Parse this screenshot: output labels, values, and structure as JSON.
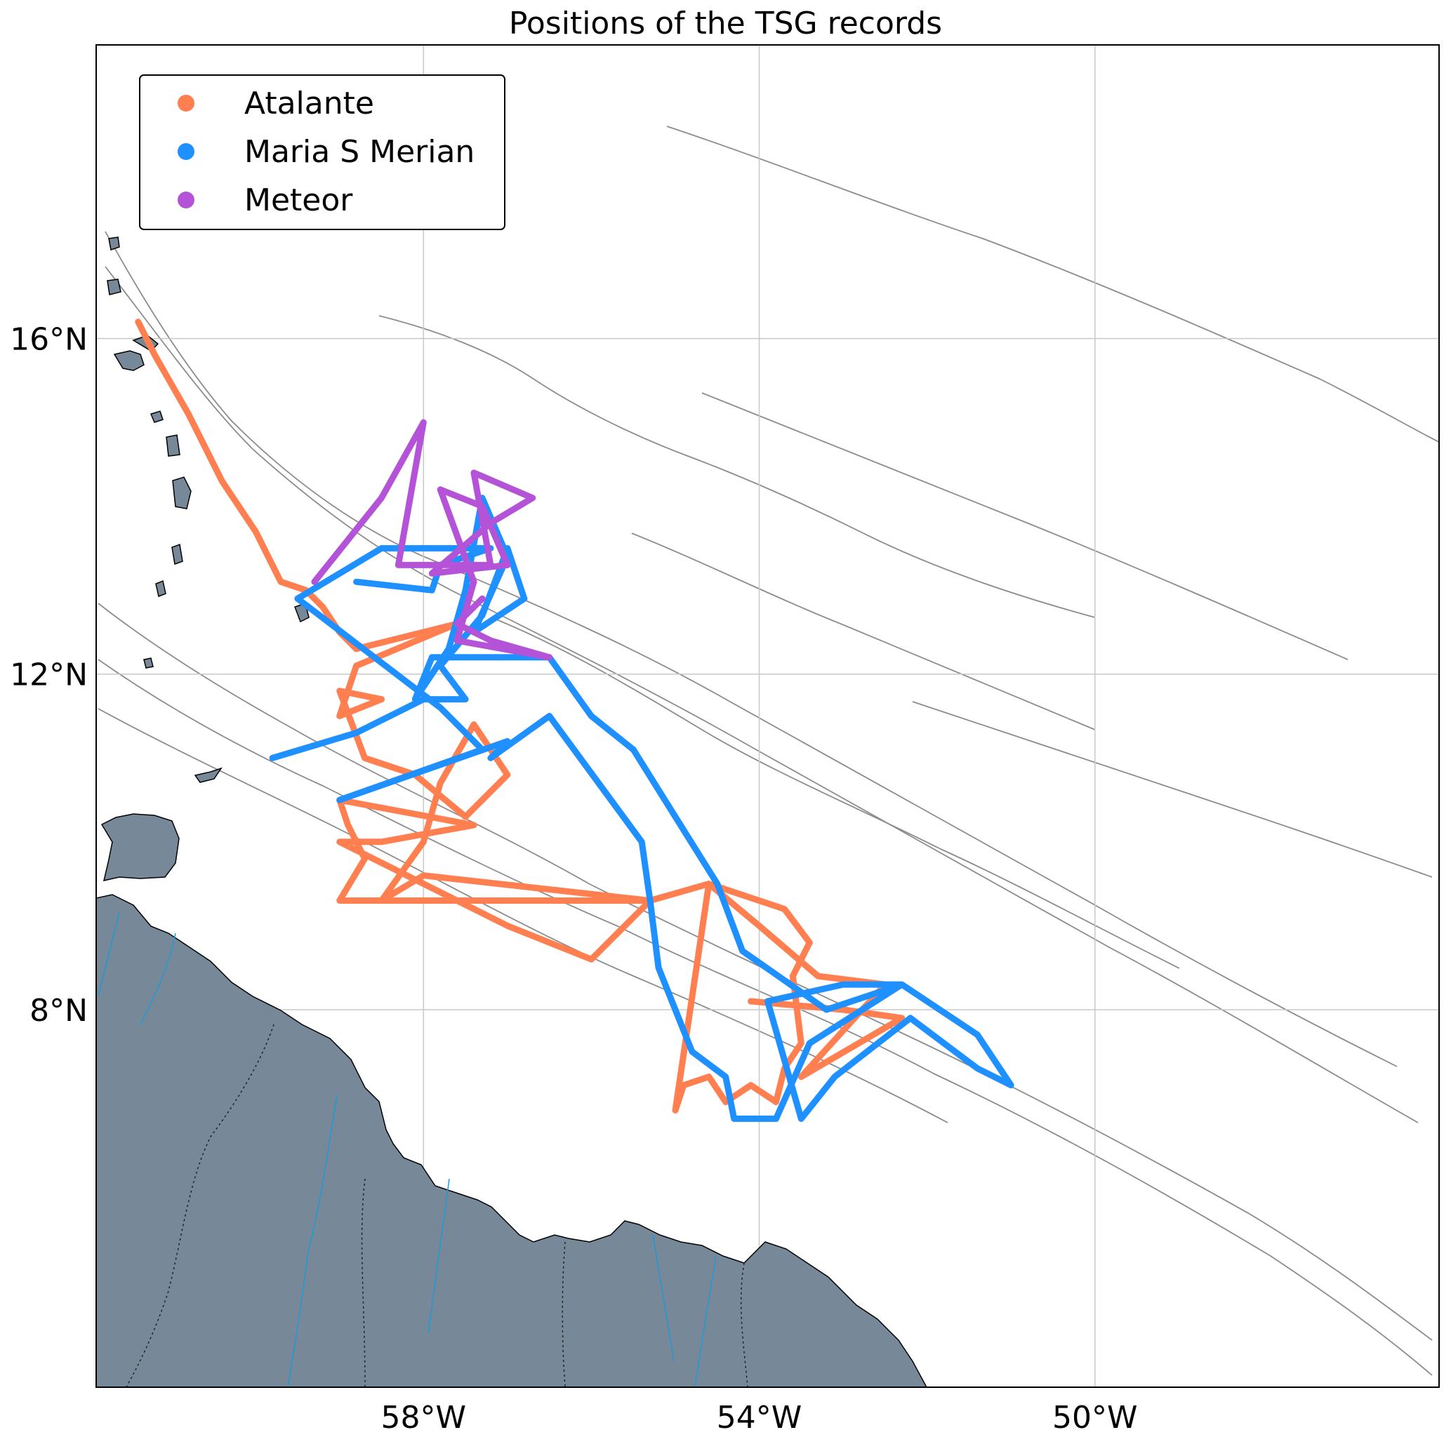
{
  "title": "Positions of the TSG records",
  "colors": {
    "land": "#778899",
    "contour": "#8c8c8c",
    "grid": "#c8c8c8",
    "river": "#1e9bd7",
    "Atalante": "#ff7f50",
    "Maria S Merian": "#1e90ff",
    "Meteor": "#b452d8"
  },
  "map": {
    "extent": {
      "lon_min": -61.9,
      "lon_max": -45.9,
      "lat_min": 3.5,
      "lat_max": 19.5
    },
    "lon_ticks": [
      {
        "value": -58,
        "label": "58°W"
      },
      {
        "value": -54,
        "label": "54°W"
      },
      {
        "value": -50,
        "label": "50°W"
      }
    ],
    "lat_ticks": [
      {
        "value": 16,
        "label": "16°N"
      },
      {
        "value": 12,
        "label": "12°N"
      },
      {
        "value": 8,
        "label": "8°N"
      }
    ],
    "grid": true,
    "features": [
      "land",
      "coastline",
      "rivers",
      "borders",
      "bathymetry-contours"
    ]
  },
  "legend": {
    "position": "top-left",
    "entries": [
      {
        "label": "Atalante",
        "icon": "circle-marker"
      },
      {
        "label": "Maria S Merian",
        "icon": "circle-marker"
      },
      {
        "label": "Meteor",
        "icon": "circle-marker"
      }
    ]
  },
  "tracks": [
    {
      "ship": "Atalante",
      "coords": [
        [
          -61.4,
          16.2
        ],
        [
          -61.2,
          15.8
        ],
        [
          -60.8,
          15.1
        ],
        [
          -60.4,
          14.3
        ],
        [
          -60.0,
          13.7
        ],
        [
          -59.7,
          13.1
        ],
        [
          -59.4,
          13.0
        ],
        [
          -59.2,
          12.8
        ],
        [
          -59.0,
          12.5
        ],
        [
          -58.8,
          12.3
        ],
        [
          -57.6,
          12.6
        ],
        [
          -58.8,
          12.1
        ],
        [
          -59.0,
          11.5
        ],
        [
          -58.5,
          11.7
        ],
        [
          -59.0,
          11.8
        ],
        [
          -58.7,
          11.0
        ],
        [
          -58.1,
          10.8
        ],
        [
          -57.5,
          10.3
        ],
        [
          -57.0,
          10.8
        ],
        [
          -57.4,
          11.4
        ],
        [
          -57.8,
          10.7
        ],
        [
          -58.0,
          10.0
        ],
        [
          -58.5,
          9.3
        ],
        [
          -59.0,
          9.3
        ],
        [
          -58.7,
          9.8
        ],
        [
          -58.9,
          10.2
        ],
        [
          -59.0,
          10.5
        ],
        [
          -57.4,
          10.2
        ],
        [
          -58.5,
          10.0
        ],
        [
          -59.0,
          10.0
        ],
        [
          -57.0,
          9.0
        ],
        [
          -56.0,
          8.6
        ],
        [
          -55.3,
          9.3
        ],
        [
          -57.0,
          9.3
        ],
        [
          -58.5,
          9.3
        ],
        [
          -58.0,
          9.6
        ],
        [
          -55.3,
          9.3
        ],
        [
          -54.6,
          9.5
        ],
        [
          -53.7,
          9.2
        ],
        [
          -53.4,
          8.8
        ],
        [
          -53.6,
          8.4
        ],
        [
          -53.5,
          7.6
        ],
        [
          -53.7,
          7.3
        ],
        [
          -53.8,
          6.9
        ],
        [
          -54.1,
          7.1
        ],
        [
          -54.4,
          6.9
        ],
        [
          -54.6,
          7.2
        ],
        [
          -54.9,
          7.1
        ],
        [
          -55.0,
          6.8
        ],
        [
          -54.6,
          9.5
        ],
        [
          -54.0,
          9.0
        ],
        [
          -53.3,
          8.4
        ],
        [
          -52.5,
          8.3
        ],
        [
          -53.5,
          7.2
        ],
        [
          -52.3,
          7.9
        ],
        [
          -53.0,
          8.0
        ],
        [
          -54.1,
          8.1
        ]
      ]
    },
    {
      "ship": "Maria S Merian",
      "coords": [
        [
          -59.8,
          11.0
        ],
        [
          -58.8,
          11.3
        ],
        [
          -58.0,
          11.7
        ],
        [
          -57.5,
          11.7
        ],
        [
          -57.8,
          12.1
        ],
        [
          -57.3,
          12.7
        ],
        [
          -57.0,
          13.5
        ],
        [
          -56.8,
          12.9
        ],
        [
          -57.4,
          12.5
        ],
        [
          -57.0,
          13.4
        ],
        [
          -57.3,
          14.1
        ],
        [
          -57.5,
          13.0
        ],
        [
          -57.7,
          12.3
        ],
        [
          -58.1,
          11.7
        ],
        [
          -57.9,
          12.2
        ],
        [
          -56.5,
          12.2
        ],
        [
          -56.0,
          11.5
        ],
        [
          -55.5,
          11.1
        ],
        [
          -55.0,
          10.3
        ],
        [
          -54.5,
          9.5
        ],
        [
          -54.2,
          8.7
        ],
        [
          -53.2,
          8.0
        ],
        [
          -52.3,
          8.3
        ],
        [
          -51.4,
          7.7
        ],
        [
          -51.0,
          7.1
        ],
        [
          -51.4,
          7.3
        ],
        [
          -52.2,
          7.9
        ],
        [
          -53.1,
          7.2
        ],
        [
          -53.5,
          6.7
        ],
        [
          -53.9,
          8.1
        ],
        [
          -53.0,
          8.3
        ],
        [
          -52.3,
          8.3
        ],
        [
          -53.4,
          7.6
        ],
        [
          -53.8,
          6.7
        ],
        [
          -54.3,
          6.7
        ],
        [
          -54.4,
          7.2
        ],
        [
          -54.8,
          7.5
        ],
        [
          -55.2,
          8.5
        ],
        [
          -55.3,
          9.3
        ],
        [
          -55.4,
          10.0
        ],
        [
          -56.5,
          11.5
        ],
        [
          -57.2,
          11.0
        ],
        [
          -57.0,
          11.2
        ],
        [
          -59.0,
          10.5
        ],
        [
          -57.3,
          11.1
        ],
        [
          -57.8,
          11.6
        ],
        [
          -59.5,
          12.9
        ],
        [
          -58.5,
          13.5
        ],
        [
          -57.2,
          13.5
        ],
        [
          -57.8,
          13.3
        ],
        [
          -57.9,
          13.0
        ],
        [
          -58.8,
          13.1
        ]
      ]
    },
    {
      "ship": "Meteor",
      "coords": [
        [
          -59.3,
          13.1
        ],
        [
          -58.5,
          14.1
        ],
        [
          -58.0,
          15.0
        ],
        [
          -58.3,
          13.3
        ],
        [
          -57.2,
          13.3
        ],
        [
          -57.4,
          14.4
        ],
        [
          -56.7,
          14.1
        ],
        [
          -57.2,
          13.8
        ],
        [
          -57.9,
          13.2
        ],
        [
          -57.0,
          13.3
        ],
        [
          -57.3,
          14.0
        ],
        [
          -57.8,
          14.2
        ],
        [
          -57.4,
          13.1
        ],
        [
          -57.6,
          12.4
        ],
        [
          -56.5,
          12.2
        ],
        [
          -57.2,
          12.4
        ],
        [
          -57.6,
          12.6
        ],
        [
          -57.3,
          12.9
        ]
      ]
    }
  ]
}
